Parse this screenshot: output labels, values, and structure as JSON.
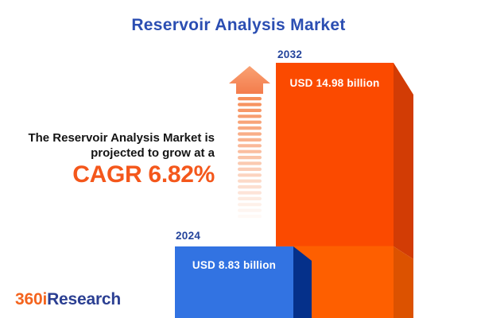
{
  "title": "Reservoir Analysis Market",
  "annotation": {
    "line1": "The Reservoir Analysis Market is",
    "line2": "projected to grow at a",
    "cagr": "CAGR 6.82%"
  },
  "chart_data": {
    "type": "bar",
    "title": "Reservoir Analysis Market",
    "categories": [
      "2024",
      "2032"
    ],
    "values": [
      8.83,
      14.98
    ],
    "unit": "USD billion",
    "value_labels": [
      "USD 8.83 billion",
      "USD 14.98 billion"
    ],
    "cagr_percent": 6.82,
    "orientation": "vertical",
    "legend": false,
    "grid": false,
    "note": "growth arrow between annotation and 2032 bar"
  },
  "logo": {
    "part1": "360i",
    "part2": "Research"
  },
  "colors": {
    "background": "#FFFFFF",
    "title_blue": "#2B4EB2",
    "label_navy": "#24449C",
    "text_dark": "#141414",
    "cagr_orange": "#F4571B",
    "bar2032_face": "#FB4A00",
    "bar2032_side": "#D23C05",
    "bar2032_lower_face": "#FE5F00",
    "bar2032_lower_side": "#DC5200",
    "bar2024_face": "#3273E2",
    "bar2024_side": "#05308A",
    "arrow_light": "#F9A173",
    "arrow_dark": "#F37C4C",
    "arrow_stripe": "#F68B55",
    "value_text": "#FFFFFF",
    "logo_orange": "#F4641E",
    "logo_navy": "#2B3F92"
  }
}
